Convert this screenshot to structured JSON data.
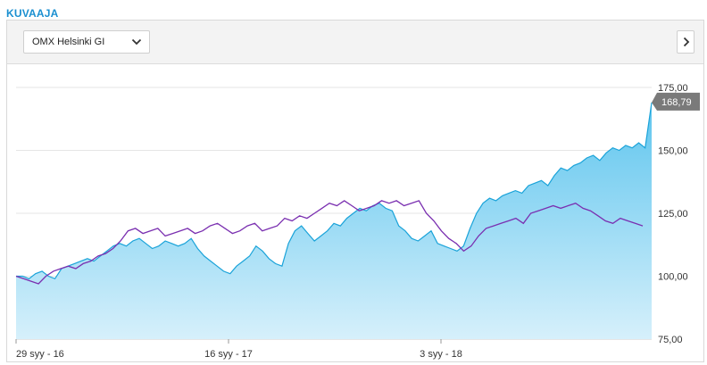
{
  "section_title": "KUVAAJA",
  "index_select": {
    "value": "OMX Helsinki GI"
  },
  "icons": {
    "dropdown": "chevron-down-icon",
    "next": "chevron-right-icon"
  },
  "chart_data": {
    "type": "area",
    "ylim": [
      75,
      175
    ],
    "y_ticks": [
      "75,00",
      "100,00",
      "125,00",
      "150,00",
      "175,00"
    ],
    "y_tick_values": [
      75,
      100,
      125,
      150,
      175
    ],
    "x_ticks": [
      "29 syy - 16",
      "16 syy - 17",
      "3 syy - 18"
    ],
    "last_value_label": "168,79",
    "colors": {
      "area_fill_top": "#5ec5ee",
      "area_fill_bottom": "#d6f0fb",
      "area_line": "#1aa3d9",
      "comparison_line": "#7a2fb0",
      "last_label_bg": "#7a7a7a"
    },
    "series": [
      {
        "values": [
          100,
          100,
          99,
          101,
          102,
          100,
          99,
          103,
          104,
          105,
          106,
          107,
          106,
          108,
          110,
          112,
          113,
          112,
          114,
          115,
          113,
          111,
          112,
          114,
          113,
          112,
          113,
          115,
          111,
          108,
          106,
          104,
          102,
          101,
          104,
          106,
          108,
          112,
          110,
          107,
          105,
          104,
          113,
          118,
          120,
          117,
          114,
          116,
          118,
          121,
          120,
          123,
          125,
          127,
          126,
          128,
          129,
          127,
          126,
          120,
          118,
          115,
          114,
          116,
          118,
          113,
          112,
          111,
          110,
          112,
          119,
          125,
          129,
          131,
          130,
          132,
          133,
          134,
          133,
          136,
          137,
          138,
          136,
          140,
          143,
          142,
          144,
          145,
          147,
          148,
          146,
          149,
          151,
          150,
          152,
          151,
          153,
          151,
          169
        ]
      },
      {
        "values": [
          100,
          99,
          98,
          97,
          100,
          102,
          103,
          104,
          103,
          105,
          106,
          108,
          109,
          111,
          114,
          118,
          119,
          117,
          118,
          119,
          116,
          117,
          118,
          119,
          117,
          118,
          120,
          121,
          119,
          117,
          118,
          120,
          121,
          118,
          119,
          120,
          123,
          122,
          124,
          123,
          125,
          127,
          129,
          128,
          130,
          128,
          126,
          127,
          128,
          130,
          129,
          130,
          128,
          129,
          130,
          125,
          122,
          118,
          115,
          113,
          110,
          112,
          116,
          119,
          120,
          121,
          122,
          123,
          121,
          125,
          126,
          127,
          128,
          127,
          128,
          129,
          127,
          126,
          124,
          122,
          121,
          123,
          122,
          121,
          120
        ]
      }
    ]
  }
}
